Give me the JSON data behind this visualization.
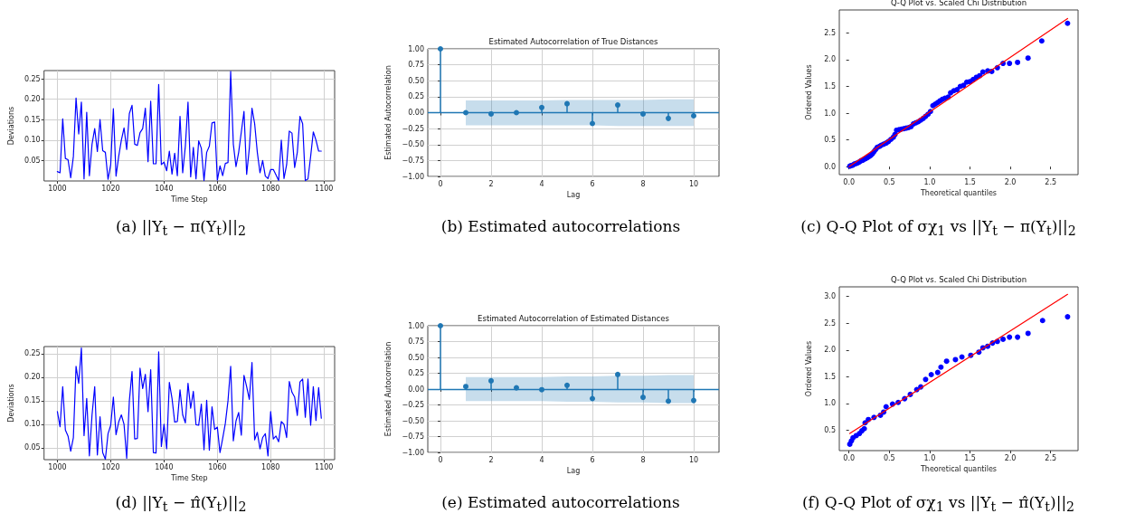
{
  "chart_data": [
    {
      "type": "line",
      "xlabel": "Time Step",
      "ylabel": "Deviations",
      "annotations": [
        "(a) ||Y$_{t}$ − π(Y$_{t}$)||$_{2}$"
      ],
      "grid": true,
      "x": [
        1000,
        1001,
        1002,
        1003,
        1004,
        1005,
        1006,
        1007,
        1008,
        1009,
        1010,
        1011,
        1012,
        1013,
        1014,
        1015,
        1016,
        1017,
        1018,
        1019,
        1020,
        1021,
        1022,
        1023,
        1024,
        1025,
        1026,
        1027,
        1028,
        1029,
        1030,
        1031,
        1032,
        1033,
        1034,
        1035,
        1036,
        1037,
        1038,
        1039,
        1040,
        1041,
        1042,
        1043,
        1044,
        1045,
        1046,
        1047,
        1048,
        1049,
        1050,
        1051,
        1052,
        1053,
        1054,
        1055,
        1056,
        1057,
        1058,
        1059,
        1060,
        1061,
        1062,
        1063,
        1064,
        1065,
        1066,
        1067,
        1068,
        1069,
        1070,
        1071,
        1072,
        1073,
        1074,
        1075,
        1076,
        1077,
        1078,
        1079,
        1080,
        1081,
        1082,
        1083,
        1084,
        1085,
        1086,
        1087,
        1088,
        1089,
        1090,
        1091,
        1092,
        1093,
        1094,
        1095,
        1096,
        1097,
        1098,
        1099
      ],
      "series": [
        {
          "color": "#0000ff",
          "values": [
            0.023,
            0.02,
            0.152,
            0.055,
            0.052,
            0.008,
            0.06,
            0.203,
            0.115,
            0.193,
            0.005,
            0.168,
            0.013,
            0.09,
            0.128,
            0.072,
            0.15,
            0.074,
            0.07,
            0.004,
            0.04,
            0.177,
            0.012,
            0.06,
            0.1,
            0.13,
            0.077,
            0.165,
            0.185,
            0.09,
            0.087,
            0.118,
            0.128,
            0.178,
            0.047,
            0.195,
            0.042,
            0.042,
            0.236,
            0.04,
            0.046,
            0.025,
            0.073,
            0.017,
            0.068,
            0.013,
            0.158,
            0.02,
            0.085,
            0.193,
            0.01,
            0.082,
            0.005,
            0.098,
            0.08,
            0.001,
            0.07,
            0.085,
            0.142,
            0.144,
            0.002,
            0.037,
            0.013,
            0.043,
            0.045,
            0.268,
            0.09,
            0.035,
            0.07,
            0.12,
            0.17,
            0.016,
            0.08,
            0.178,
            0.14,
            0.07,
            0.02,
            0.05,
            0.012,
            0.006,
            0.028,
            0.028,
            0.015,
            0.001,
            0.1,
            0.006,
            0.04,
            0.122,
            0.117,
            0.033,
            0.07,
            0.158,
            0.14,
            0.001,
            0.005,
            0.06,
            0.12,
            0.1,
            0.073,
            0.073
          ]
        }
      ],
      "xlim": [
        995,
        1104
      ],
      "xticks": [
        1000,
        1020,
        1040,
        1060,
        1080,
        1100
      ],
      "ylim": [
        0,
        0.27
      ],
      "yticks": [
        0.05,
        {
          "value": 0.1,
          "label": "0.10"
        },
        0.15,
        {
          "value": 0.2,
          "label": "0.20"
        },
        0.25
      ]
    },
    {
      "type": "lollipop",
      "title": "Estimated Autocorrelation of True Distances",
      "xlabel": "Lag",
      "ylabel": "Estimated Autocorrelation",
      "annotations": [
        "(b) Estimated autocorrelations"
      ],
      "grid": true,
      "marker": "circle",
      "x": [
        0,
        1,
        2,
        3,
        4,
        5,
        6,
        7,
        8,
        9,
        10
      ],
      "series": [
        {
          "color": "#1f77b4",
          "values": [
            1,
            0,
            -0.02,
            0,
            0.08,
            0.14,
            -0.17,
            0.12,
            -0.02,
            -0.09,
            -0.05
          ],
          "lower": [
            null,
            -0.2,
            -0.2,
            -0.2,
            -0.2,
            -0.2,
            -0.2,
            -0.21,
            -0.21,
            -0.21,
            -0.21
          ],
          "upper": [
            null,
            0.19,
            0.19,
            0.19,
            0.19,
            0.2,
            0.2,
            0.2,
            0.2,
            0.21,
            0.21
          ]
        }
      ],
      "ref_lines": [
        {
          "axis": "y",
          "value": 0,
          "color": "#1f77b4"
        }
      ],
      "xlim": [
        -0.5,
        11
      ],
      "xticks": [
        0,
        2,
        4,
        6,
        8,
        10
      ],
      "ylim": [
        -1,
        1
      ],
      "yticks": [
        {
          "value": -1,
          "label": "−1.00"
        },
        {
          "value": -0.75,
          "label": "−0.75"
        },
        {
          "value": -0.5,
          "label": "−0.50"
        },
        {
          "value": -0.25,
          "label": "−0.25"
        },
        {
          "value": 0,
          "label": "0.00"
        },
        0.25,
        {
          "value": 0.5,
          "label": "0.50"
        },
        0.75,
        {
          "value": 1,
          "label": "1.00"
        }
      ]
    },
    {
      "type": "scatter",
      "title": "Q-Q Plot vs. Scaled Chi Distribution",
      "xlabel": "Theoretical quantiles",
      "ylabel": "Ordered Values",
      "annotations": [
        "(c) Q-Q Plot of σχ$_{1}$ vs ||Y$_{t}$ − π(Y$_{t}$)||$_{2}$"
      ],
      "series": [
        {
          "type": "scatter",
          "marker": "circle",
          "color": "#0000ff",
          "x": [
            0.01,
            0.03,
            0.05,
            0.07,
            0.09,
            0.11,
            0.13,
            0.15,
            0.17,
            0.19,
            0.21,
            0.23,
            0.25,
            0.27,
            0.29,
            0.31,
            0.33,
            0.35,
            0.38,
            0.4,
            0.43,
            0.46,
            0.49,
            0.52,
            0.55,
            0.57,
            0.59,
            0.62,
            0.65,
            0.68,
            0.71,
            0.74,
            0.77,
            0.8,
            0.83,
            0.86,
            0.89,
            0.92,
            0.95,
            0.98,
            1.01,
            1.04,
            1.07,
            1.1,
            1.13,
            1.16,
            1.19,
            1.23,
            1.26,
            1.3,
            1.34,
            1.38,
            1.42,
            1.46,
            1.5,
            1.54,
            1.58,
            1.62,
            1.66,
            1.72,
            1.77,
            1.84,
            1.91,
            1.99,
            2.09,
            2.22,
            2.39,
            2.71
          ],
          "values": [
            0.01,
            0.02,
            0.03,
            0.05,
            0.06,
            0.07,
            0.09,
            0.11,
            0.12,
            0.14,
            0.15,
            0.17,
            0.19,
            0.21,
            0.24,
            0.28,
            0.32,
            0.36,
            0.38,
            0.4,
            0.42,
            0.44,
            0.47,
            0.51,
            0.55,
            0.6,
            0.68,
            0.69,
            0.7,
            0.71,
            0.72,
            0.73,
            0.75,
            0.8,
            0.82,
            0.84,
            0.87,
            0.9,
            0.94,
            0.98,
            1.03,
            1.14,
            1.17,
            1.2,
            1.23,
            1.26,
            1.28,
            1.3,
            1.38,
            1.42,
            1.44,
            1.5,
            1.52,
            1.58,
            1.59,
            1.63,
            1.67,
            1.7,
            1.77,
            1.79,
            1.78,
            1.85,
            1.93,
            1.93,
            1.95,
            2.03,
            2.35,
            2.68
          ]
        },
        {
          "type": "line",
          "marker": "none",
          "color": "#ff0000",
          "x": [
            0,
            2.71
          ],
          "values": [
            0,
            2.77
          ]
        }
      ],
      "xlim": [
        -0.12,
        2.84
      ],
      "xticks": [
        {
          "value": 0,
          "label": "0.0"
        },
        0.5,
        {
          "value": 1,
          "label": "1.0"
        },
        1.5,
        {
          "value": 2,
          "label": "2.0"
        },
        2.5
      ],
      "ylim": [
        -0.15,
        2.93
      ],
      "yticks": [
        {
          "value": 0,
          "label": "0.0"
        },
        0.5,
        {
          "value": 1,
          "label": "1.0"
        },
        1.5,
        {
          "value": 2,
          "label": "2.0"
        },
        2.5
      ]
    },
    {
      "type": "line",
      "xlabel": "Time Step",
      "ylabel": "Deviations",
      "annotations": [
        "(d) ||Y$_{t}$ − π̂(Y$_{t}$)||$_{2}$"
      ],
      "grid": true,
      "x": [
        1000,
        1001,
        1002,
        1003,
        1004,
        1005,
        1006,
        1007,
        1008,
        1009,
        1010,
        1011,
        1012,
        1013,
        1014,
        1015,
        1016,
        1017,
        1018,
        1019,
        1020,
        1021,
        1022,
        1023,
        1024,
        1025,
        1026,
        1027,
        1028,
        1029,
        1030,
        1031,
        1032,
        1033,
        1034,
        1035,
        1036,
        1037,
        1038,
        1039,
        1040,
        1041,
        1042,
        1043,
        1044,
        1045,
        1046,
        1047,
        1048,
        1049,
        1050,
        1051,
        1052,
        1053,
        1054,
        1055,
        1056,
        1057,
        1058,
        1059,
        1060,
        1061,
        1062,
        1063,
        1064,
        1065,
        1066,
        1067,
        1068,
        1069,
        1070,
        1071,
        1072,
        1073,
        1074,
        1075,
        1076,
        1077,
        1078,
        1079,
        1080,
        1081,
        1082,
        1083,
        1084,
        1085,
        1086,
        1087,
        1088,
        1089,
        1090,
        1091,
        1092,
        1093,
        1094,
        1095,
        1096,
        1097,
        1098,
        1099
      ],
      "series": [
        {
          "color": "#0000ff",
          "values": [
            0.127,
            0.095,
            0.18,
            0.088,
            0.075,
            0.043,
            0.072,
            0.223,
            0.187,
            0.262,
            0.076,
            0.155,
            0.033,
            0.12,
            0.18,
            0.035,
            0.116,
            0.04,
            0.026,
            0.08,
            0.098,
            0.158,
            0.078,
            0.105,
            0.12,
            0.1,
            0.028,
            0.15,
            0.212,
            0.069,
            0.07,
            0.219,
            0.176,
            0.206,
            0.127,
            0.216,
            0.04,
            0.039,
            0.254,
            0.053,
            0.1,
            0.048,
            0.189,
            0.155,
            0.105,
            0.106,
            0.173,
            0.12,
            0.103,
            0.187,
            0.134,
            0.17,
            0.099,
            0.098,
            0.143,
            0.046,
            0.151,
            0.045,
            0.137,
            0.089,
            0.094,
            0.04,
            0.07,
            0.102,
            0.15,
            0.223,
            0.065,
            0.107,
            0.125,
            0.077,
            0.204,
            0.18,
            0.153,
            0.231,
            0.067,
            0.083,
            0.048,
            0.072,
            0.08,
            0.033,
            0.127,
            0.069,
            0.075,
            0.063,
            0.106,
            0.1,
            0.072,
            0.191,
            0.168,
            0.158,
            0.119,
            0.19,
            0.196,
            0.115,
            0.196,
            0.098,
            0.18,
            0.108,
            0.178,
            0.113
          ]
        }
      ],
      "xlim": [
        995,
        1104
      ],
      "xticks": [
        1000,
        1020,
        1040,
        1060,
        1080,
        1100
      ],
      "ylim": [
        0.025,
        0.265
      ],
      "yticks": [
        0.05,
        {
          "value": 0.1,
          "label": "0.10"
        },
        0.15,
        {
          "value": 0.2,
          "label": "0.20"
        },
        0.25
      ]
    },
    {
      "type": "lollipop",
      "title": "Estimated Autocorrelation of Estimated Distances",
      "xlabel": "Lag",
      "ylabel": "Estimated Autocorrelation",
      "annotations": [
        "(e) Estimated autocorrelations"
      ],
      "grid": true,
      "marker": "circle",
      "x": [
        0,
        1,
        2,
        3,
        4,
        5,
        6,
        7,
        8,
        9,
        10
      ],
      "series": [
        {
          "color": "#1f77b4",
          "values": [
            1,
            0.04,
            0.13,
            0.02,
            -0.01,
            0.06,
            -0.15,
            0.23,
            -0.13,
            -0.19,
            -0.18
          ],
          "lower": [
            null,
            -0.19,
            -0.19,
            -0.19,
            -0.19,
            -0.2,
            -0.2,
            -0.21,
            -0.21,
            -0.22,
            -0.22
          ],
          "upper": [
            null,
            0.19,
            0.19,
            0.19,
            0.19,
            0.2,
            0.2,
            0.21,
            0.21,
            0.22,
            0.22
          ]
        }
      ],
      "ref_lines": [
        {
          "axis": "y",
          "value": 0,
          "color": "#1f77b4"
        }
      ],
      "xlim": [
        -0.5,
        11
      ],
      "xticks": [
        0,
        2,
        4,
        6,
        8,
        10
      ],
      "ylim": [
        -1,
        1
      ],
      "yticks": [
        {
          "value": -1,
          "label": "−1.00"
        },
        {
          "value": -0.75,
          "label": "−0.75"
        },
        {
          "value": -0.5,
          "label": "−0.50"
        },
        {
          "value": -0.25,
          "label": "−0.25"
        },
        {
          "value": 0,
          "label": "0.00"
        },
        0.25,
        {
          "value": 0.5,
          "label": "0.50"
        },
        0.75,
        {
          "value": 1,
          "label": "1.00"
        }
      ]
    },
    {
      "type": "scatter",
      "title": "Q-Q Plot vs. Scaled Chi Distribution",
      "xlabel": "Theoretical quantiles",
      "ylabel": "Ordered Values",
      "annotations": [
        "(f) Q-Q Plot of σχ$_{1}$ vs ||Y$_{t}$ − π̂(Y$_{t}$)||$_{2}$"
      ],
      "series": [
        {
          "type": "scatter",
          "marker": "circle",
          "color": "#0000ff",
          "x": [
            0.01,
            0.03,
            0.05,
            0.09,
            0.13,
            0.16,
            0.19,
            0.2,
            0.24,
            0.31,
            0.39,
            0.43,
            0.46,
            0.54,
            0.61,
            0.69,
            0.76,
            0.84,
            0.89,
            0.95,
            1.02,
            1.1,
            1.14,
            1.21,
            1.32,
            1.4,
            1.51,
            1.61,
            1.66,
            1.72,
            1.78,
            1.84,
            1.91,
            1.99,
            2.09,
            2.22,
            2.4,
            2.71
          ],
          "values": [
            0.24,
            0.3,
            0.36,
            0.4,
            0.44,
            0.49,
            0.53,
            0.64,
            0.7,
            0.74,
            0.78,
            0.84,
            0.94,
            0.99,
            1.02,
            1.09,
            1.17,
            1.26,
            1.31,
            1.45,
            1.54,
            1.58,
            1.68,
            1.79,
            1.82,
            1.87,
            1.9,
            1.96,
            2.04,
            2.07,
            2.13,
            2.16,
            2.2,
            2.24,
            2.24,
            2.31,
            2.55,
            2.62
          ]
        },
        {
          "type": "line",
          "marker": "none",
          "color": "#ff0000",
          "x": [
            0.01,
            2.71
          ],
          "values": [
            0.44,
            3.04
          ]
        }
      ],
      "xlim": [
        -0.12,
        2.84
      ],
      "xticks": [
        {
          "value": 0,
          "label": "0.0"
        },
        0.5,
        {
          "value": 1,
          "label": "1.0"
        },
        1.5,
        {
          "value": 2,
          "label": "2.0"
        },
        2.5
      ],
      "ylim": [
        0.12,
        3.18
      ],
      "yticks": [
        0.5,
        {
          "value": 1,
          "label": "1.0"
        },
        1.5,
        {
          "value": 2,
          "label": "2.0"
        },
        2.5,
        {
          "value": 3,
          "label": "3.0"
        }
      ]
    }
  ]
}
